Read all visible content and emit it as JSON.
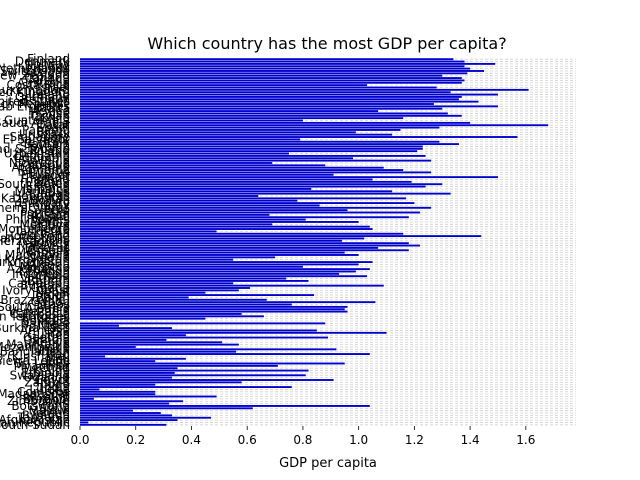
{
  "chart_data": {
    "type": "bar",
    "orientation": "horizontal",
    "title": "Which country has the most GDP per capita?",
    "xlabel": "GDP per capita",
    "ylabel": "",
    "xlim": [
      0,
      1.78
    ],
    "xticks": [
      "0.0",
      "0.2",
      "0.4",
      "0.6",
      "0.8",
      "1.0",
      "1.2",
      "1.4",
      "1.6"
    ],
    "xtick_values": [
      0.0,
      0.2,
      0.4,
      0.6,
      0.8,
      1.0,
      1.2,
      1.4,
      1.6
    ],
    "grid": "x-axis dashed",
    "bar_color": "#0000cc",
    "categories": [
      "Finland",
      "Denmark",
      "Norway",
      "Iceland",
      "Netherlands",
      "Switzerland",
      "Sweden",
      "New Zealand",
      "Canada",
      "Austria",
      "Australia",
      "Costa Rica",
      "Israel",
      "Luxembourg",
      "United Kingdom",
      "Ireland",
      "Germany",
      "Belgium",
      "United States",
      "Czech Republic",
      "United Arab Emirates",
      "Malta",
      "Mexico",
      "France",
      "Taiwan",
      "Chile",
      "Guatemala",
      "Saudi Arabia",
      "Qatar",
      "Spain",
      "Panama",
      "Brazil",
      "Uruguay",
      "Singapore",
      "El Salvador",
      "Italy",
      "Bahrain",
      "Slovakia",
      "Trinidad & Tobago",
      "Poland",
      "Uzbekistan",
      "Lithuania",
      "Colombia",
      "Slovenia",
      "Nicaragua",
      "Kosovo",
      "Argentina",
      "Romania",
      "Cyprus",
      "Ecuador",
      "Kuwait",
      "Thailand",
      "Latvia",
      "South Korea",
      "Estonia",
      "Jamaica",
      "Mauritius",
      "Japan",
      "Honduras",
      "Kazakhstan",
      "Bolivia",
      "Hungary",
      "Paraguay",
      "Northern Cyprus",
      "Peru",
      "Portugal",
      "Pakistan",
      "Russia",
      "Philippines",
      "Serbia",
      "Moldova",
      "Libya",
      "Montenegro",
      "Tajikistan",
      "Croatia",
      "Hong Kong",
      "Dominican Republic",
      "Bosnia and Herzegovina",
      "Turkey",
      "Malaysia",
      "Belarus",
      "Greece",
      "Mongolia",
      "North Macedonia",
      "Nigeria",
      "Kyrgyzstan",
      "Turkmenistan",
      "Algeria",
      "Morocco",
      "Azerbaijan",
      "Lebanon",
      "Indonesia",
      "China",
      "Vietnam",
      "Bhutan",
      "Cameroon",
      "Bulgaria",
      "Ghana",
      "Ivory Coast",
      "Nepal",
      "Jordan",
      "Benin",
      "Congo (Brazzaville)",
      "Gabon",
      "Laos",
      "South Africa",
      "Albania",
      "Venezuela",
      "Cambodia",
      "Palestinian Territories",
      "Senegal",
      "Somalia",
      "Namibia",
      "Niger",
      "Burkina Faso",
      "Armenia",
      "Iran",
      "Guinea",
      "Georgia",
      "Gambia",
      "Kenya",
      "Mauritania",
      "Mozambique",
      "Tunisia",
      "Bangladesh",
      "Iraq",
      "Congo (Kinshasa)",
      "Mali",
      "Sierra Leone",
      "Sri Lanka",
      "Myanmar",
      "Chad",
      "Ukraine",
      "Ethiopia",
      "Swaziland",
      "Uganda",
      "Egypt",
      "Zambia",
      "Togo",
      "India",
      "Liberia",
      "Comoros",
      "Madagascar",
      "Lesotho",
      "Burundi",
      "Zimbabwe",
      "Haiti",
      "Botswana",
      "Syria",
      "Malawi",
      "Yemen",
      "Rwanda",
      "Tanzania",
      "Afghanistan",
      "Central African Republic",
      "South Sudan"
    ],
    "values": [
      1.34,
      1.38,
      1.49,
      1.38,
      1.4,
      1.45,
      1.39,
      1.3,
      1.37,
      1.38,
      1.37,
      1.03,
      1.28,
      1.61,
      1.33,
      1.5,
      1.37,
      1.36,
      1.43,
      1.27,
      1.5,
      1.3,
      1.07,
      1.32,
      1.37,
      1.16,
      0.8,
      1.4,
      1.68,
      1.29,
      1.15,
      0.99,
      1.12,
      1.57,
      0.79,
      1.29,
      1.36,
      1.23,
      1.23,
      1.21,
      0.75,
      1.24,
      0.98,
      1.26,
      0.69,
      0.88,
      1.09,
      1.16,
      1.26,
      0.91,
      1.5,
      1.05,
      1.19,
      1.3,
      1.24,
      0.83,
      1.12,
      1.33,
      0.64,
      1.17,
      0.78,
      1.2,
      0.86,
      1.26,
      0.96,
      1.22,
      0.68,
      1.18,
      0.81,
      1.0,
      0.69,
      1.04,
      1.05,
      0.49,
      1.16,
      1.44,
      1.02,
      0.94,
      1.18,
      1.22,
      1.07,
      1.18,
      0.95,
      1.0,
      0.7,
      0.55,
      1.05,
      1.0,
      0.8,
      1.04,
      0.99,
      0.93,
      1.03,
      0.74,
      0.82,
      0.55,
      1.09,
      0.61,
      0.57,
      0.45,
      0.84,
      0.39,
      0.67,
      1.06,
      0.76,
      0.96,
      0.95,
      0.96,
      0.58,
      0.66,
      0.45,
      0.0,
      0.88,
      0.14,
      0.33,
      0.85,
      1.1,
      0.38,
      0.89,
      0.31,
      0.51,
      0.57,
      0.2,
      0.92,
      0.56,
      1.04,
      0.09,
      0.38,
      0.27,
      0.95,
      0.71,
      0.35,
      0.82,
      0.34,
      0.81,
      0.33,
      0.91,
      0.58,
      0.27,
      0.76,
      0.07,
      0.27,
      0.27,
      0.49,
      0.05,
      0.37,
      0.32,
      1.04,
      0.62,
      0.19,
      0.29,
      0.33,
      0.47,
      0.35,
      0.03,
      0.31
    ]
  }
}
